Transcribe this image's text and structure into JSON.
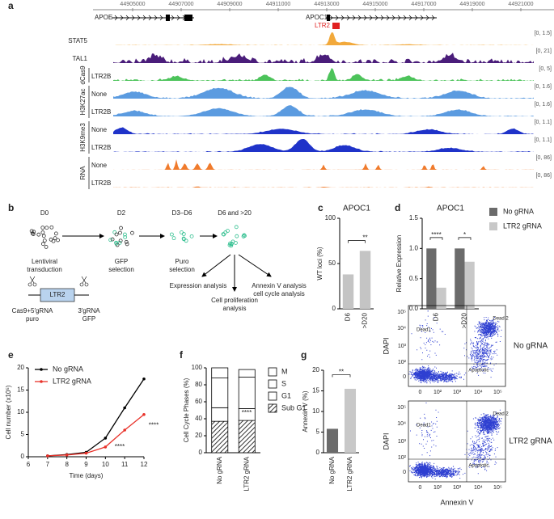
{
  "panel_a": {
    "label": "a",
    "coordinates": [
      44905000,
      44907000,
      44909000,
      44911000,
      44913000,
      44915000,
      44917000,
      44919000,
      44921000
    ],
    "genes": [
      "APOE",
      "APOC1"
    ],
    "element": "LTR2",
    "tracks": [
      {
        "name": "STAT5",
        "range": "[0, 1.5]",
        "color": "#f2a93b"
      },
      {
        "name": "TAL1",
        "range": "[0, 21]",
        "color": "#4a1d7a"
      },
      {
        "name": "LTR2B",
        "range": "[0, 5]",
        "color": "#4cc35a"
      },
      {
        "name": "None",
        "range": "[0, 1.6]",
        "color": "#5b9be0"
      },
      {
        "name": "LTR2B",
        "range": "[0, 1.6]",
        "color": "#5b9be0"
      },
      {
        "name": "None",
        "range": "[0, 1.1]",
        "color": "#1f33c9"
      },
      {
        "name": "LTR2B",
        "range": "[0, 1.1]",
        "color": "#1f33c9"
      },
      {
        "name": "None",
        "range": "[0, 86]",
        "color": "#f07b2c"
      },
      {
        "name": "LTR2B",
        "range": "[0, 86]",
        "color": "#f07b2c"
      }
    ],
    "groups": [
      "dCas9",
      "H3K27ac",
      "H3K9me3",
      "RNA"
    ]
  },
  "panel_b": {
    "label": "b",
    "steps": [
      {
        "day": "D0",
        "caption": [
          "Lentiviral",
          "transduction"
        ]
      },
      {
        "day": "D2",
        "caption": [
          "GFP",
          "selection"
        ]
      },
      {
        "day": "D3–D6",
        "caption": [
          "Puro",
          "selection"
        ]
      },
      {
        "day": "D6 and >20"
      }
    ],
    "analyses": [
      [
        "Expression analysis"
      ],
      [
        "Cell proliferation",
        "analysis"
      ],
      [
        "Annexin V analysis",
        "cell cycle analysis"
      ]
    ],
    "construct": {
      "element": "LTR2",
      "left": [
        "Cas9+5′gRNA",
        "puro"
      ],
      "right": [
        "3′gRNA",
        "GFP"
      ]
    }
  },
  "chart_data": [
    {
      "type": "bar",
      "panel_label": "c",
      "title": "APOC1",
      "y_label": "WT loci (%)",
      "categories": [
        "D6",
        ">D20"
      ],
      "values": [
        38,
        64
      ],
      "color": "#c4c4c4",
      "ylim": [
        0,
        100
      ],
      "yticks": [
        0,
        50,
        100
      ],
      "annotations": [
        "**"
      ]
    },
    {
      "type": "bar",
      "panel_label": "d",
      "title": "APOC1",
      "y_label": "Relative Expression",
      "categories": [
        "D6",
        ">D20"
      ],
      "series": [
        {
          "name": "No gRNA",
          "color": "#6b6b6b",
          "values": [
            1.0,
            1.0
          ]
        },
        {
          "name": "LTR2 gRNA",
          "color": "#c8c8c8",
          "values": [
            0.35,
            0.78
          ]
        }
      ],
      "ylim": [
        0,
        1.5
      ],
      "yticks": [
        {
          "value": 0,
          "label": "0.0"
        },
        0.5,
        {
          "value": 1,
          "label": "1.0"
        },
        1.5
      ],
      "annotations": [
        "****",
        "*"
      ]
    },
    {
      "type": "line",
      "panel_label": "e",
      "x_label": "Time (days)",
      "y_label": "Cell number (x10⁵)",
      "x": [
        7,
        8,
        9,
        10,
        11,
        12
      ],
      "series": [
        {
          "name": "No gRNA",
          "color": "#000000",
          "values": [
            0.2,
            0.5,
            1.0,
            4.2,
            11,
            17.5
          ]
        },
        {
          "name": "LTR2 gRNA",
          "color": "#e8322a",
          "values": [
            0.2,
            0.4,
            0.8,
            2.2,
            6,
            9.5
          ]
        }
      ],
      "xlim": [
        6,
        12
      ],
      "xticks": [
        6,
        7,
        8,
        9,
        10,
        11,
        12
      ],
      "ylim": [
        0,
        20
      ],
      "yticks": [
        0,
        5,
        10,
        15,
        20
      ],
      "annotations": [
        "****",
        "****"
      ]
    },
    {
      "type": "stacked_bar",
      "panel_label": "f",
      "y_label": "Cell Cycle Phases (%)",
      "categories": [
        "No gRNA",
        "LTR2 gRNA"
      ],
      "series": [
        {
          "name": "M",
          "color": "#ffffff",
          "values": [
            12,
            9
          ]
        },
        {
          "name": "S",
          "color": "#ffffff",
          "values": [
            35,
            37
          ]
        },
        {
          "name": "G1",
          "color": "#ffffff",
          "values": [
            16,
            14
          ]
        },
        {
          "name": "Sub G1",
          "color": "#333333",
          "hatch": true,
          "values": [
            37,
            38
          ]
        }
      ],
      "ylim": [
        0,
        100
      ],
      "yticks": [
        0,
        20,
        40,
        60,
        80,
        100
      ],
      "annotations": [
        "****"
      ]
    },
    {
      "type": "bar",
      "panel_label": "g",
      "y_label": "Annexin V (%)",
      "categories": [
        "No gRNA",
        "LTR2 gRNA"
      ],
      "values": [
        5.8,
        15.5
      ],
      "colors": [
        "#6b6b6b",
        "#c8c8c8"
      ],
      "ylim": [
        0,
        20
      ],
      "yticks": [
        0,
        5,
        10,
        15,
        20
      ],
      "annotations": [
        "**"
      ]
    }
  ],
  "flow": {
    "panels": [
      "No gRNA",
      "LTR2 gRNA"
    ],
    "y_label": "DAPI",
    "x_label": "Annexin V",
    "gates": [
      "Dead1",
      "Dead 2",
      "Apoptotic"
    ],
    "ticks": [
      "0",
      "10²",
      "10³",
      "10⁴",
      "10⁵"
    ]
  }
}
